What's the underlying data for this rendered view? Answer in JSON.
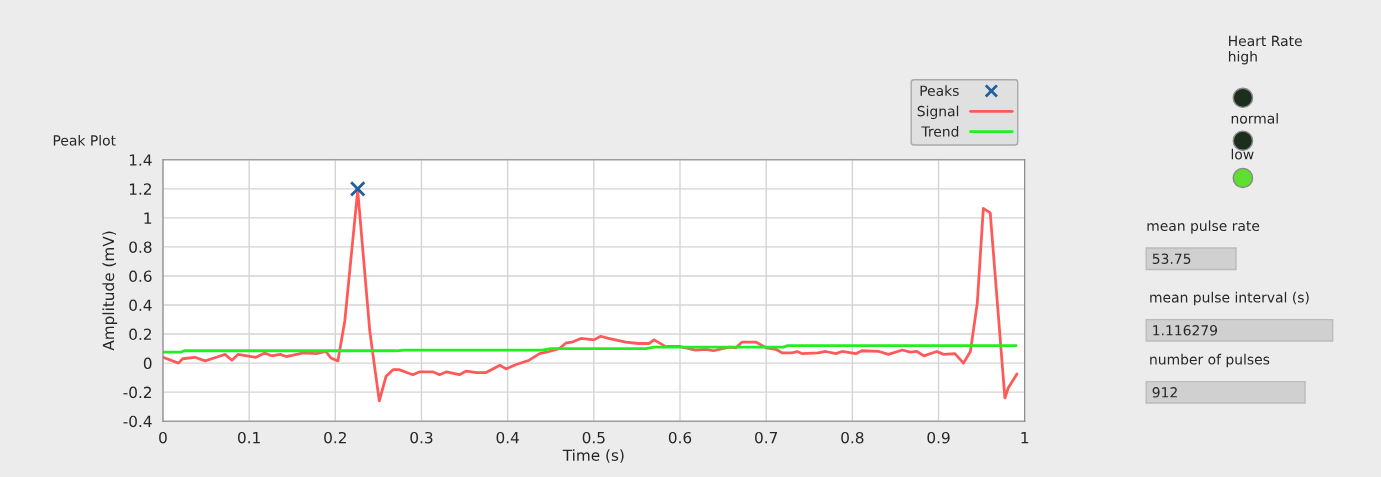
{
  "chart_data": {
    "type": "line",
    "title": "Peak Plot",
    "xlabel": "Time (s)",
    "ylabel": "Amplitude (mV)",
    "xlim": [
      0,
      1
    ],
    "xticks": [
      0,
      0.1,
      0.2,
      0.3,
      0.4,
      0.5,
      0.6,
      0.7,
      0.8,
      0.9,
      1
    ],
    "ylim": [
      -0.4,
      1.4
    ],
    "yticks": [
      -0.4,
      -0.2,
      0,
      0.2,
      0.4,
      0.6,
      0.8,
      1,
      1.2,
      1.4
    ],
    "grid": true,
    "legend": "top right",
    "series": [
      {
        "name": "Peaks",
        "type": "scatter",
        "marker": "cross",
        "color": "#1f5fa0",
        "x": [
          0.226
        ],
        "values": [
          1.2
        ]
      },
      {
        "name": "Signal",
        "color": "#ff5a5a",
        "x": [
          0,
          0.018,
          0.023,
          0.037,
          0.049,
          0.062,
          0.072,
          0.08,
          0.087,
          0.108,
          0.118,
          0.126,
          0.136,
          0.143,
          0.155,
          0.163,
          0.178,
          0.189,
          0.195,
          0.203,
          0.211,
          0.226,
          0.24,
          0.251,
          0.259,
          0.267,
          0.274,
          0.29,
          0.298,
          0.313,
          0.321,
          0.329,
          0.344,
          0.352,
          0.364,
          0.375,
          0.391,
          0.398,
          0.41,
          0.425,
          0.437,
          0.448,
          0.46,
          0.468,
          0.475,
          0.485,
          0.5,
          0.508,
          0.517,
          0.537,
          0.552,
          0.564,
          0.57,
          0.583,
          0.599,
          0.618,
          0.63,
          0.639,
          0.657,
          0.665,
          0.672,
          0.688,
          0.7,
          0.711,
          0.719,
          0.73,
          0.736,
          0.742,
          0.76,
          0.769,
          0.781,
          0.788,
          0.804,
          0.811,
          0.831,
          0.842,
          0.858,
          0.867,
          0.875,
          0.883,
          0.898,
          0.906,
          0.919,
          0.929,
          0.937,
          0.945,
          0.952,
          0.96,
          0.977,
          0.981,
          0.991
        ],
        "values": [
          0.04,
          0.0,
          0.03,
          0.04,
          0.015,
          0.04,
          0.06,
          0.02,
          0.06,
          0.04,
          0.07,
          0.05,
          0.06,
          0.045,
          0.06,
          0.07,
          0.065,
          0.08,
          0.035,
          0.015,
          0.29,
          1.19,
          0.22,
          -0.26,
          -0.09,
          -0.045,
          -0.045,
          -0.08,
          -0.06,
          -0.06,
          -0.08,
          -0.06,
          -0.08,
          -0.055,
          -0.065,
          -0.065,
          -0.015,
          -0.04,
          -0.01,
          0.02,
          0.065,
          0.08,
          0.1,
          0.14,
          0.145,
          0.17,
          0.16,
          0.185,
          0.17,
          0.145,
          0.135,
          0.135,
          0.16,
          0.115,
          0.115,
          0.09,
          0.095,
          0.085,
          0.11,
          0.105,
          0.145,
          0.145,
          0.105,
          0.095,
          0.07,
          0.07,
          0.08,
          0.065,
          0.07,
          0.08,
          0.065,
          0.08,
          0.065,
          0.085,
          0.08,
          0.06,
          0.09,
          0.075,
          0.08,
          0.05,
          0.08,
          0.06,
          0.065,
          0.0,
          0.08,
          0.415,
          1.065,
          1.035,
          -0.24,
          -0.17,
          -0.075
        ]
      },
      {
        "name": "Trend",
        "color": "#22ee22",
        "x": [
          0,
          0.02,
          0.025,
          0.27,
          0.28,
          0.44,
          0.45,
          0.56,
          0.57,
          0.72,
          0.725,
          0.99
        ],
        "values": [
          0.075,
          0.075,
          0.085,
          0.085,
          0.09,
          0.09,
          0.1,
          0.1,
          0.11,
          0.11,
          0.12,
          0.12
        ]
      }
    ],
    "annotations": [
      "Heart Rate\nhigh",
      "normal",
      "low",
      "mean pulse rate",
      "53.75",
      "mean pulse interval (s)",
      "1.116279",
      "number of pulses",
      "912"
    ]
  }
}
